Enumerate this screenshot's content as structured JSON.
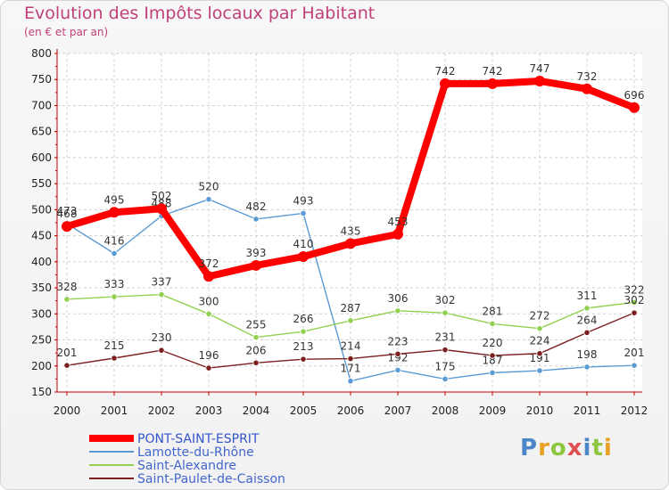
{
  "title": "Evolution des Impôts locaux par Habitant",
  "subtitle": "(en € et par an)",
  "brand": "Proxiti",
  "chart_data": {
    "type": "line",
    "x": [
      "2000",
      "2001",
      "2002",
      "2003",
      "2004",
      "2005",
      "2006",
      "2007",
      "2008",
      "2009",
      "2010",
      "2011",
      "2012"
    ],
    "ylim": [
      150,
      800
    ],
    "yticks": [
      150,
      200,
      250,
      300,
      350,
      400,
      450,
      500,
      550,
      600,
      650,
      700,
      750,
      800
    ],
    "grid": true,
    "legend_position": "bottom-left",
    "series": [
      {
        "name": "PONT-SAINT-ESPRIT",
        "color": "#ff0000",
        "values": [
          468,
          495,
          502,
          372,
          393,
          410,
          435,
          453,
          742,
          742,
          747,
          732,
          696
        ]
      },
      {
        "name": "Lamotte-du-Rhône",
        "color": "#5b9bd5",
        "values": [
          473,
          416,
          488,
          520,
          482,
          493,
          171,
          192,
          175,
          187,
          191,
          198,
          201
        ]
      },
      {
        "name": "Saint-Alexandre",
        "color": "#92d050",
        "values": [
          328,
          333,
          337,
          300,
          255,
          266,
          287,
          306,
          302,
          281,
          272,
          311,
          322
        ]
      },
      {
        "name": "Saint-Paulet-de-Caisson",
        "color": "#7b1f1f",
        "values": [
          201,
          215,
          230,
          196,
          206,
          213,
          214,
          223,
          231,
          220,
          224,
          264,
          302
        ]
      }
    ]
  }
}
